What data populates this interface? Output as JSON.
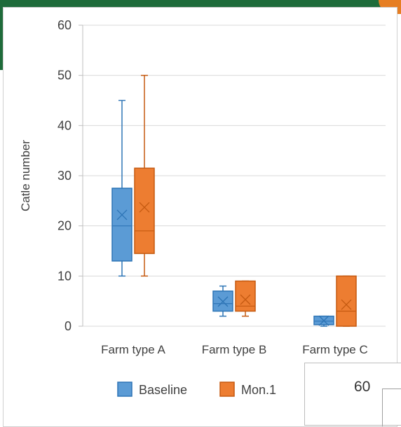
{
  "chart_data": {
    "type": "box",
    "ylabel": "Catle number",
    "xlabel": "",
    "ylim": [
      0,
      60
    ],
    "yticks": [
      "0",
      "10",
      "20",
      "30",
      "40",
      "50",
      "60"
    ],
    "grid": true,
    "legend_position": "bottom",
    "categories": [
      "Farm type A",
      "Farm type B",
      "Farm type C"
    ],
    "series": [
      {
        "name": "Baseline",
        "color": "#5b9bd5",
        "edge": "#2e75b6",
        "boxes": [
          {
            "min": 10,
            "q1": 13,
            "median": 20,
            "q3": 27.5,
            "max": 45,
            "mean": 22.2
          },
          {
            "min": 2,
            "q1": 3,
            "median": 4.5,
            "q3": 7,
            "max": 8,
            "mean": 4.9
          },
          {
            "min": 0,
            "q1": 0.3,
            "median": 1,
            "q3": 2,
            "max": 2,
            "mean": 1.1
          }
        ]
      },
      {
        "name": "Mon.1",
        "color": "#ed7d31",
        "edge": "#c55a11",
        "boxes": [
          {
            "min": 10,
            "q1": 14.5,
            "median": 19,
            "q3": 31.5,
            "max": 50,
            "mean": 23.7
          },
          {
            "min": 2,
            "q1": 3,
            "median": 4,
            "q3": 9,
            "max": 9,
            "mean": 5.3
          },
          {
            "min": 0,
            "q1": 0,
            "median": 3,
            "q3": 10,
            "max": 10,
            "mean": 4.3
          }
        ]
      }
    ]
  },
  "inset": {
    "label": "60"
  }
}
